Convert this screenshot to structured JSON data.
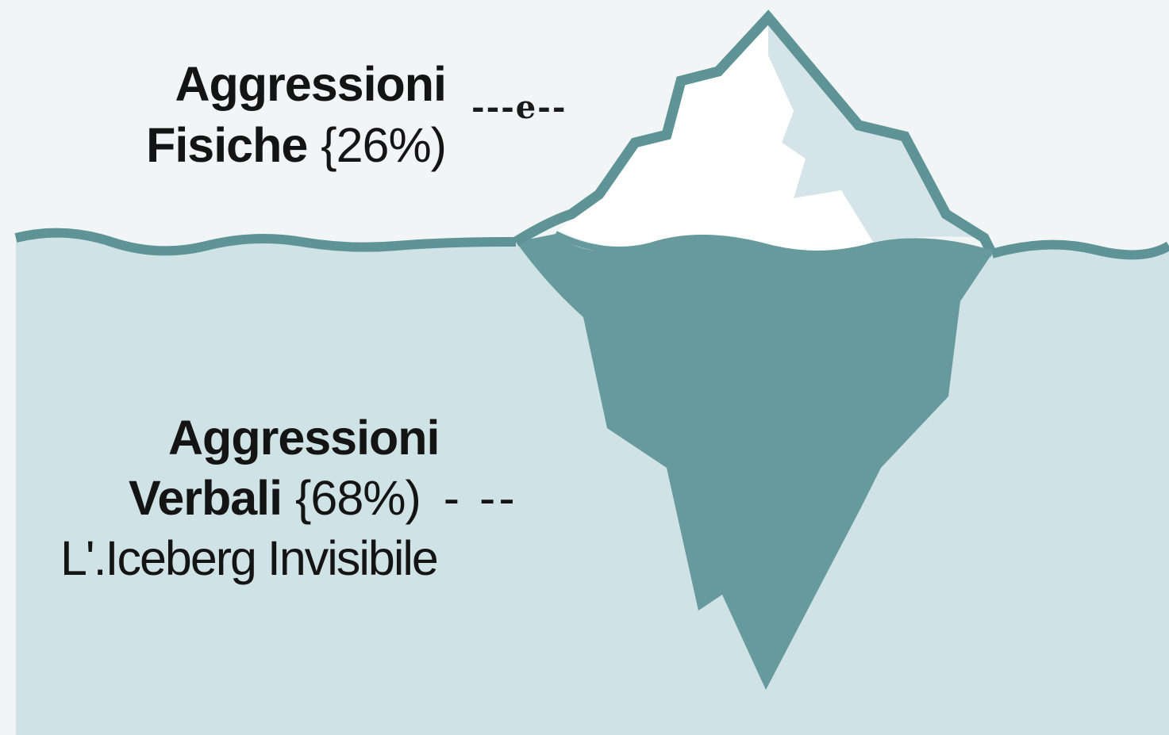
{
  "top": {
    "line1": "Aggressioni",
    "line2_bold": "Fisiche",
    "line2_value": "{26%)",
    "leader": "---e--"
  },
  "bottom": {
    "line1": "Aggressioni",
    "line2_bold": "Verbali",
    "line2_value": "{68%)",
    "leader": "- --",
    "caption": "L'.Iceberg Invisibile"
  },
  "colors": {
    "sky": "#f1f5f6",
    "water": "#cfe2e6",
    "ice_outline": "#5f9497",
    "ice_top": "#ffffff",
    "ice_shade": "#d5e4e8",
    "ice_underwater": "#669a9d"
  }
}
